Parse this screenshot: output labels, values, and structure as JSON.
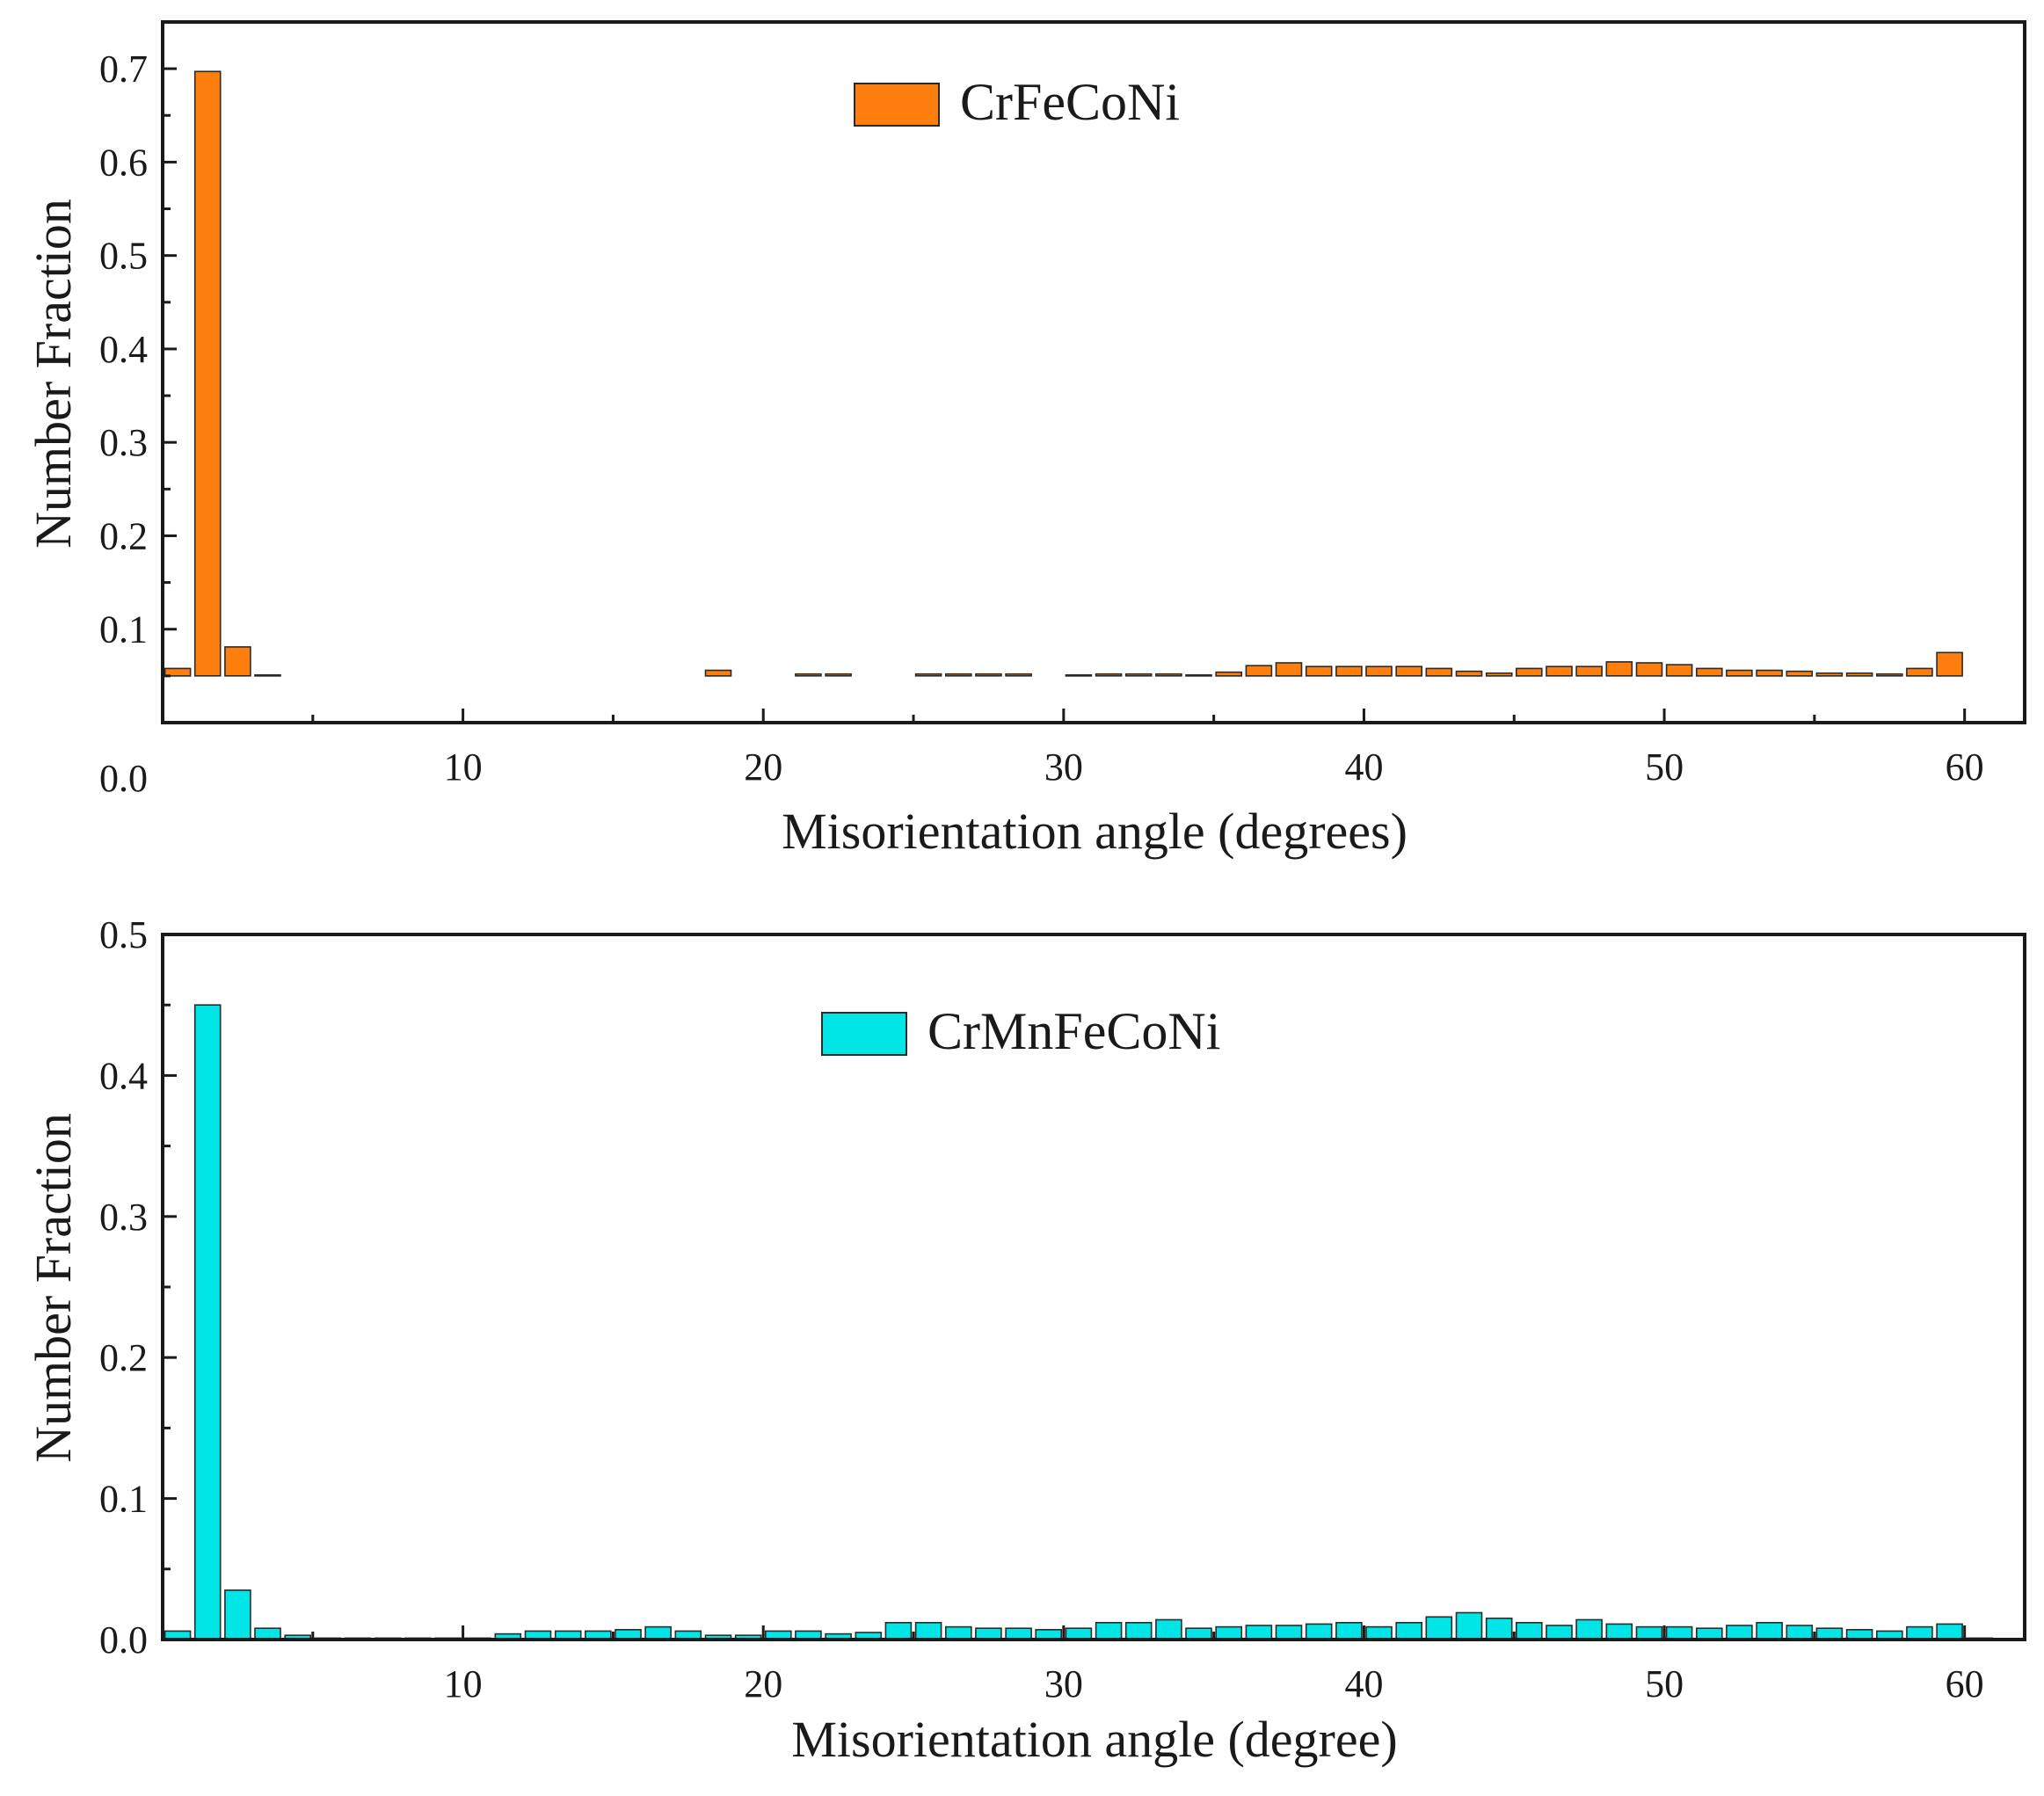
{
  "chart_data": [
    {
      "type": "bar",
      "title": "",
      "legend": {
        "label": "CrFeCoNi",
        "position": "top-center"
      },
      "xlabel": "Misorientation angle (degrees)",
      "ylabel": "Number Fraction",
      "xlim": [
        0,
        62
      ],
      "ylim": [
        0.0,
        0.75
      ],
      "xticks": [
        10,
        20,
        30,
        40,
        50,
        60
      ],
      "yticks": [
        "0.0",
        "0.1",
        "0.2",
        "0.3",
        "0.4",
        "0.5",
        "0.6",
        "0.7"
      ],
      "ytick_values": [
        0.0,
        0.1,
        0.2,
        0.3,
        0.4,
        0.5,
        0.6,
        0.7
      ],
      "baseline": 0.05,
      "color": "#FF7F0E",
      "bar_width": 0.85,
      "x": [
        0.5,
        1.5,
        2.5,
        3.5,
        4.5,
        5.5,
        6.5,
        7.5,
        8.5,
        9.5,
        10.5,
        11.5,
        12.5,
        13.5,
        14.5,
        15.5,
        16.5,
        17.5,
        18.5,
        19.5,
        20.5,
        21.5,
        22.5,
        23.5,
        24.5,
        25.5,
        26.5,
        27.5,
        28.5,
        29.5,
        30.5,
        31.5,
        32.5,
        33.5,
        34.5,
        35.5,
        36.5,
        37.5,
        38.5,
        39.5,
        40.5,
        41.5,
        42.5,
        43.5,
        44.5,
        45.5,
        46.5,
        47.5,
        48.5,
        49.5,
        50.5,
        51.5,
        52.5,
        53.5,
        54.5,
        55.5,
        56.5,
        57.5,
        58.5,
        59.5
      ],
      "values": [
        0.058,
        0.697,
        0.081,
        0.051,
        0.05,
        0.05,
        0.05,
        0.05,
        0.05,
        0.05,
        0.05,
        0.05,
        0.05,
        0.05,
        0.05,
        0.05,
        0.05,
        0.05,
        0.056,
        0.05,
        0.05,
        0.052,
        0.052,
        0.05,
        0.05,
        0.052,
        0.052,
        0.052,
        0.052,
        0.05,
        0.051,
        0.052,
        0.052,
        0.052,
        0.051,
        0.054,
        0.061,
        0.064,
        0.06,
        0.06,
        0.06,
        0.06,
        0.058,
        0.055,
        0.053,
        0.058,
        0.06,
        0.06,
        0.065,
        0.064,
        0.062,
        0.058,
        0.056,
        0.056,
        0.055,
        0.053,
        0.053,
        0.052,
        0.058,
        0.075
      ]
    },
    {
      "type": "bar",
      "title": "",
      "legend": {
        "label": "CrMnFeCoNi",
        "position": "top-center"
      },
      "xlabel": "Misorientation angle (degree)",
      "ylabel": "Number Fraction",
      "xlim": [
        0,
        62
      ],
      "ylim": [
        0.0,
        0.5
      ],
      "xticks": [
        10,
        20,
        30,
        40,
        50,
        60
      ],
      "yticks": [
        "0.0",
        "0.1",
        "0.2",
        "0.3",
        "0.4",
        "0.5"
      ],
      "ytick_values": [
        0.0,
        0.1,
        0.2,
        0.3,
        0.4,
        0.5
      ],
      "baseline": 0.0,
      "color": "#00E5E5",
      "bar_width": 0.85,
      "x": [
        0.5,
        1.5,
        2.5,
        3.5,
        4.5,
        5.5,
        6.5,
        7.5,
        8.5,
        9.5,
        10.5,
        11.5,
        12.5,
        13.5,
        14.5,
        15.5,
        16.5,
        17.5,
        18.5,
        19.5,
        20.5,
        21.5,
        22.5,
        23.5,
        24.5,
        25.5,
        26.5,
        27.5,
        28.5,
        29.5,
        30.5,
        31.5,
        32.5,
        33.5,
        34.5,
        35.5,
        36.5,
        37.5,
        38.5,
        39.5,
        40.5,
        41.5,
        42.5,
        43.5,
        44.5,
        45.5,
        46.5,
        47.5,
        48.5,
        49.5,
        50.5,
        51.5,
        52.5,
        53.5,
        54.5,
        55.5,
        56.5,
        57.5,
        58.5,
        59.5,
        60.5
      ],
      "values": [
        0.006,
        0.45,
        0.035,
        0.008,
        0.003,
        0.001,
        0.001,
        0.001,
        0.001,
        0.001,
        0.001,
        0.004,
        0.006,
        0.006,
        0.006,
        0.007,
        0.009,
        0.006,
        0.003,
        0.003,
        0.006,
        0.006,
        0.004,
        0.005,
        0.012,
        0.012,
        0.009,
        0.008,
        0.008,
        0.007,
        0.008,
        0.012,
        0.012,
        0.014,
        0.008,
        0.009,
        0.01,
        0.01,
        0.011,
        0.012,
        0.009,
        0.012,
        0.016,
        0.019,
        0.015,
        0.012,
        0.01,
        0.014,
        0.011,
        0.009,
        0.009,
        0.008,
        0.01,
        0.012,
        0.01,
        0.008,
        0.007,
        0.006,
        0.009,
        0.011,
        0.001
      ]
    }
  ]
}
